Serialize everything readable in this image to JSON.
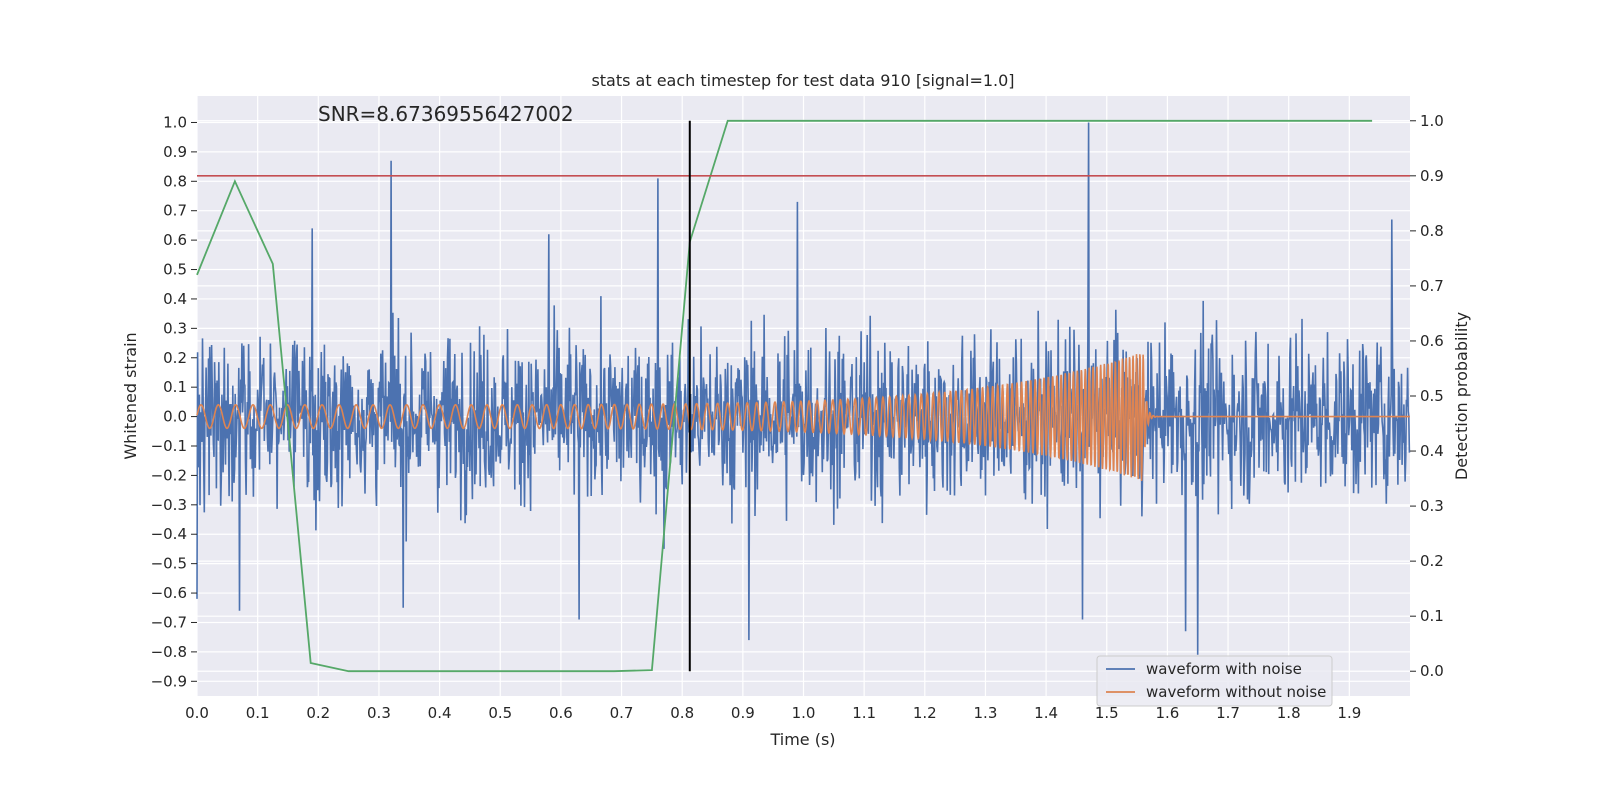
{
  "chart_data": {
    "type": "line",
    "title": "stats at each timestep for test data 910 [signal=1.0]",
    "annotation": "SNR=8.67369556427002",
    "xlabel": "Time (s)",
    "ylabel": "Whitened strain",
    "y2label": "Detection probability",
    "xlim": [
      0.0,
      2.0
    ],
    "ylim": [
      -0.95,
      1.09
    ],
    "y2lim": [
      -0.045,
      1.045
    ],
    "x_ticks": [
      "0.0",
      "0.1",
      "0.2",
      "0.3",
      "0.4",
      "0.5",
      "0.6",
      "0.7",
      "0.8",
      "0.9",
      "1.0",
      "1.1",
      "1.2",
      "1.3",
      "1.4",
      "1.5",
      "1.6",
      "1.7",
      "1.8",
      "1.9"
    ],
    "y_ticks": [
      "1.0",
      "0.9",
      "0.8",
      "0.7",
      "0.6",
      "0.5",
      "0.4",
      "0.3",
      "0.2",
      "0.1",
      "0.0",
      "−0.1",
      "−0.2",
      "−0.3",
      "−0.4",
      "−0.5",
      "−0.6",
      "−0.7",
      "−0.8",
      "−0.9"
    ],
    "y2_ticks": [
      "1.0",
      "0.9",
      "0.8",
      "0.7",
      "0.6",
      "0.5",
      "0.4",
      "0.3",
      "0.2",
      "0.1",
      "0.0"
    ],
    "grid": true,
    "legend_position": "lower-right",
    "colors": {
      "background": "#eaeaf2",
      "grid": "#ffffff",
      "noisy": "#4c72b0",
      "clean": "#dd8452",
      "probability": "#55a868",
      "threshold": "#c44e52",
      "marker": "#000000"
    },
    "series": [
      {
        "name": "waveform with noise",
        "axis": "left",
        "description_values": {
          "noise_amplitude_typical": 0.35,
          "peaks": [
            {
              "x": 0.0,
              "y": 0.55
            },
            {
              "x": 0.0,
              "y": -0.62
            },
            {
              "x": 0.07,
              "y": -0.66
            },
            {
              "x": 0.19,
              "y": 0.64
            },
            {
              "x": 0.32,
              "y": 0.87
            },
            {
              "x": 0.34,
              "y": -0.65
            },
            {
              "x": 0.58,
              "y": 0.62
            },
            {
              "x": 0.63,
              "y": -0.69
            },
            {
              "x": 0.76,
              "y": 0.81
            },
            {
              "x": 0.77,
              "y": -0.45
            },
            {
              "x": 0.91,
              "y": -0.76
            },
            {
              "x": 0.99,
              "y": 0.73
            },
            {
              "x": 1.47,
              "y": 1.0
            },
            {
              "x": 1.46,
              "y": -0.69
            },
            {
              "x": 1.65,
              "y": -0.81
            },
            {
              "x": 1.63,
              "y": -0.73
            },
            {
              "x": 1.97,
              "y": 0.67
            }
          ]
        }
      },
      {
        "name": "waveform without noise",
        "axis": "left",
        "chirp": {
          "start_amplitude": 0.04,
          "end_amplitude": 0.22,
          "start_freq_hz": 35,
          "end_freq_hz": 180,
          "merger_time": 1.56
        }
      },
      {
        "name": "detection probability",
        "axis": "right",
        "x": [
          0.0,
          0.0625,
          0.125,
          0.1875,
          0.25,
          0.3125,
          0.375,
          0.4375,
          0.5,
          0.5625,
          0.625,
          0.6875,
          0.75,
          0.8125,
          0.875,
          0.9375,
          1.0,
          1.5,
          1.9375
        ],
        "y": [
          0.72,
          0.89,
          0.74,
          0.015,
          0.0,
          0.0,
          0.0,
          0.0,
          0.0,
          0.0,
          0.0,
          0.0,
          0.002,
          0.78,
          1.0,
          1.0,
          1.0,
          1.0,
          1.0
        ]
      }
    ],
    "threshold_line": {
      "axis": "right",
      "value": 0.9
    },
    "vertical_marker": {
      "x": 0.8125,
      "y2_range": [
        0.0,
        1.0
      ]
    }
  }
}
